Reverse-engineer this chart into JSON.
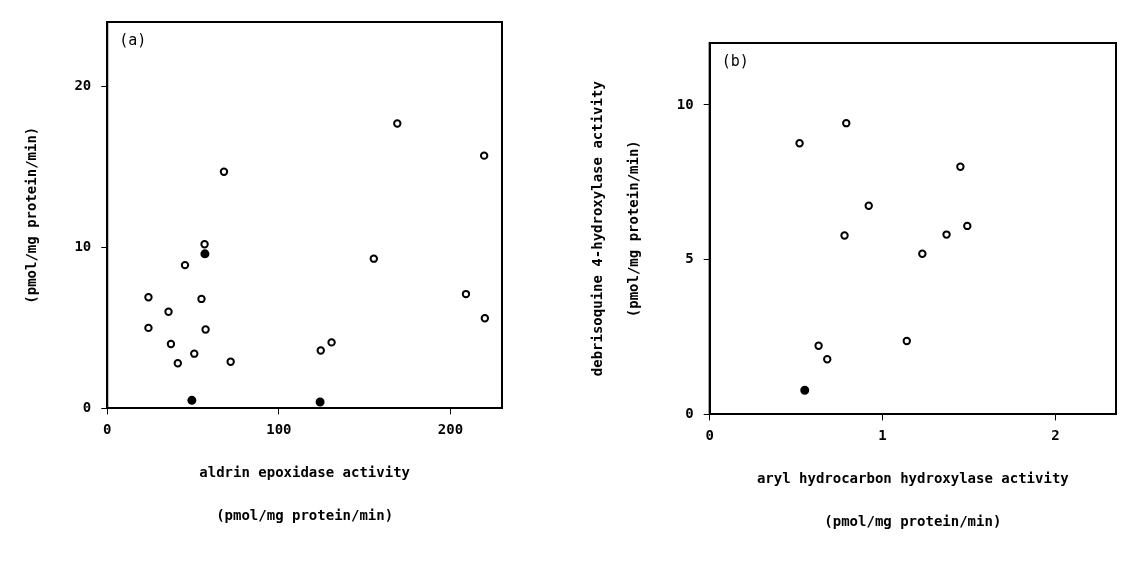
{
  "chart_data": [
    {
      "type": "scatter",
      "ylabel": "(pmol/mg protein/min)",
      "xlabel": "aldrin epoxidase activity\n(pmol/mg protein/min)",
      "annotations": [
        "(a)"
      ],
      "xlim": [
        0,
        230
      ],
      "xticks": [
        0,
        100,
        200
      ],
      "ylim": [
        0,
        24
      ],
      "yticks": [
        0,
        10,
        20
      ],
      "grid": false,
      "marker": "circle",
      "series": [
        {
          "color": "#000000",
          "x": [
            68,
            56.7,
            45.3,
            24,
            54.9,
            35.7,
            24,
            57.3,
            37.1,
            50.7,
            41.1,
            71.9,
            169,
            155.3,
            209,
            130.7,
            124.4,
            219.6,
            220
          ],
          "values": [
            14.7,
            10.2,
            8.9,
            6.9,
            6.8,
            6.0,
            5.0,
            4.9,
            4.0,
            3.4,
            2.8,
            2.9,
            17.7,
            9.3,
            7.1,
            4.1,
            3.6,
            15.7,
            5.6
          ]
        },
        {
          "color": "#000000",
          "x": [
            56.9,
            49.3,
            124
          ],
          "values": [
            9.6,
            0.5,
            0.4
          ]
        }
      ]
    },
    {
      "type": "scatter",
      "ylabel": "debrisoquine 4-hydroxylase activity\n(pmol/mg protein/min)",
      "xlabel": "aryl hydrocarbon hydroxylase activity\n(pmol/mg protein/min)",
      "annotations": [
        "(b)"
      ],
      "xlim": [
        0,
        2.35
      ],
      "xticks": [
        0,
        1,
        2
      ],
      "ylim": [
        0,
        12
      ],
      "yticks": [
        0,
        5,
        10
      ],
      "grid": false,
      "marker": "circle",
      "series": [
        {
          "color": "#000000",
          "x": [
            0.52,
            0.79,
            1.45,
            0.92,
            0.78,
            1.37,
            1.49,
            1.23,
            1.14,
            0.63,
            0.68
          ],
          "values": [
            8.76,
            9.41,
            8.0,
            6.74,
            5.78,
            5.81,
            6.09,
            5.19,
            2.37,
            2.22,
            1.78
          ]
        },
        {
          "color": "#000000",
          "x": [
            0.55
          ],
          "values": [
            0.78
          ]
        }
      ]
    }
  ]
}
